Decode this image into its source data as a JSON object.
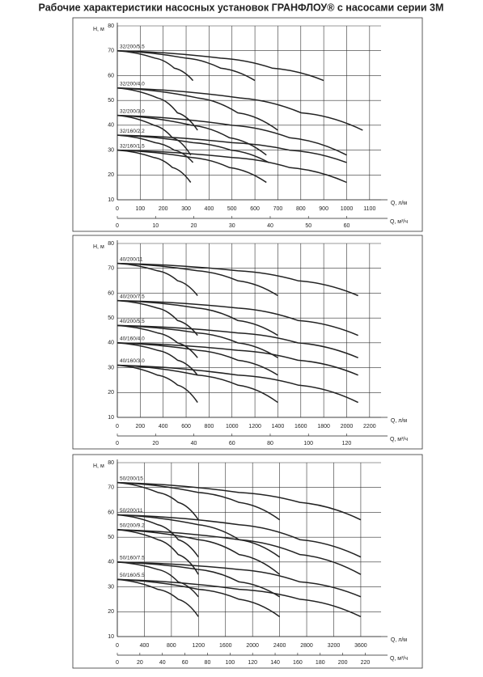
{
  "title": "Рабочие характеристики насосных установок ГРАНФЛОУ® с насосами серии 3М",
  "chart_data": [
    {
      "type": "line",
      "ylabel": "H, м",
      "xlabel": "Q, л/м",
      "x2label": "Q, м³/ч",
      "ylim": [
        10,
        80
      ],
      "yticks": [
        10,
        20,
        30,
        40,
        50,
        60,
        70,
        80
      ],
      "xlim": [
        0,
        1150
      ],
      "xticks": [
        0,
        100,
        200,
        300,
        400,
        500,
        600,
        700,
        800,
        900,
        1000,
        1100
      ],
      "x2lim": [
        0,
        69
      ],
      "x2ticks": [
        0,
        10,
        20,
        30,
        40,
        50,
        60
      ],
      "grid": true,
      "color": "#222222",
      "families": [
        {
          "label": "32/200/5.5",
          "curves": [
            {
              "x": [
                0,
                165,
                248,
                330
              ],
              "values": [
                70,
                67,
                63,
                58
              ]
            },
            {
              "x": [
                0,
                300,
                450,
                600
              ],
              "values": [
                70,
                67,
                63,
                58
              ]
            },
            {
              "x": [
                0,
                450,
                675,
                900
              ],
              "values": [
                70,
                67,
                63,
                58
              ]
            }
          ]
        },
        {
          "label": "32/200/4.0",
          "curves": [
            {
              "x": [
                0,
                175,
                262,
                350
              ],
              "values": [
                55,
                51,
                45,
                38
              ]
            },
            {
              "x": [
                0,
                350,
                525,
                700
              ],
              "values": [
                55,
                51,
                45,
                38
              ]
            },
            {
              "x": [
                0,
                535,
                802,
                1070
              ],
              "values": [
                55,
                51,
                45,
                38
              ]
            }
          ]
        },
        {
          "label": "32/200/3.0",
          "curves": [
            {
              "x": [
                0,
                160,
                240,
                320
              ],
              "values": [
                44,
                40,
                35,
                28
              ]
            },
            {
              "x": [
                0,
                325,
                488,
                650
              ],
              "values": [
                44,
                40,
                35,
                28
              ]
            },
            {
              "x": [
                0,
                500,
                750,
                1000
              ],
              "values": [
                44,
                40,
                35,
                28
              ]
            }
          ]
        },
        {
          "label": "32/160/2.2",
          "curves": [
            {
              "x": [
                0,
                165,
                248,
                330
              ],
              "values": [
                36,
                33,
                30,
                25
              ]
            },
            {
              "x": [
                0,
                330,
                495,
                660
              ],
              "values": [
                36,
                33,
                30,
                25
              ]
            },
            {
              "x": [
                0,
                500,
                750,
                1000
              ],
              "values": [
                36,
                33,
                30,
                25
              ]
            }
          ]
        },
        {
          "label": "32/160/1.5",
          "curves": [
            {
              "x": [
                0,
                160,
                240,
                320
              ],
              "values": [
                30,
                27,
                23,
                17
              ]
            },
            {
              "x": [
                0,
                325,
                488,
                650
              ],
              "values": [
                30,
                27,
                23,
                17
              ]
            },
            {
              "x": [
                0,
                500,
                750,
                1000
              ],
              "values": [
                30,
                27,
                23,
                17
              ]
            }
          ]
        }
      ]
    },
    {
      "type": "line",
      "ylabel": "H, м",
      "xlabel": "Q, л/м",
      "x2label": "Q, м³/ч",
      "ylim": [
        10,
        80
      ],
      "yticks": [
        10,
        20,
        30,
        40,
        50,
        60,
        70,
        80
      ],
      "xlim": [
        0,
        2300
      ],
      "xticks": [
        0,
        200,
        400,
        600,
        800,
        1000,
        1200,
        1400,
        1600,
        1800,
        2000,
        2200
      ],
      "x2lim": [
        0,
        138
      ],
      "x2ticks": [
        0,
        20,
        40,
        60,
        80,
        100,
        120
      ],
      "grid": true,
      "color": "#222222",
      "families": [
        {
          "label": "40/200/11",
          "curves": [
            {
              "x": [
                0,
                350,
                525,
                700
              ],
              "values": [
                72,
                69,
                65,
                59
              ]
            },
            {
              "x": [
                0,
                700,
                1050,
                1400
              ],
              "values": [
                72,
                69,
                65,
                59
              ]
            },
            {
              "x": [
                0,
                1050,
                1575,
                2100
              ],
              "values": [
                72,
                69,
                65,
                59
              ]
            }
          ]
        },
        {
          "label": "40/200/7.5",
          "curves": [
            {
              "x": [
                0,
                350,
                525,
                700
              ],
              "values": [
                57,
                54,
                49,
                43
              ]
            },
            {
              "x": [
                0,
                700,
                1050,
                1400
              ],
              "values": [
                57,
                54,
                49,
                43
              ]
            },
            {
              "x": [
                0,
                1050,
                1575,
                2100
              ],
              "values": [
                57,
                54,
                49,
                43
              ]
            }
          ]
        },
        {
          "label": "40/200/5.5",
          "curves": [
            {
              "x": [
                0,
                350,
                525,
                700
              ],
              "values": [
                47,
                44,
                40,
                34
              ]
            },
            {
              "x": [
                0,
                700,
                1050,
                1400
              ],
              "values": [
                47,
                44,
                40,
                34
              ]
            },
            {
              "x": [
                0,
                1050,
                1575,
                2100
              ],
              "values": [
                47,
                44,
                40,
                34
              ]
            }
          ]
        },
        {
          "label": "40/160/4.0",
          "curves": [
            {
              "x": [
                0,
                350,
                525,
                700
              ],
              "values": [
                40,
                37,
                33,
                27
              ]
            },
            {
              "x": [
                0,
                700,
                1050,
                1400
              ],
              "values": [
                40,
                37,
                33,
                27
              ]
            },
            {
              "x": [
                0,
                1050,
                1575,
                2100
              ],
              "values": [
                40,
                37,
                33,
                27
              ]
            }
          ]
        },
        {
          "label": "40/160/3.0",
          "curves": [
            {
              "x": [
                0,
                350,
                525,
                700
              ],
              "values": [
                31,
                27,
                23,
                16
              ]
            },
            {
              "x": [
                0,
                700,
                1050,
                1400
              ],
              "values": [
                31,
                27,
                23,
                16
              ]
            },
            {
              "x": [
                0,
                1050,
                1575,
                2100
              ],
              "values": [
                31,
                27,
                23,
                16
              ]
            }
          ]
        }
      ]
    },
    {
      "type": "line",
      "ylabel": "H, м",
      "xlabel": "Q, л/м",
      "x2label": "Q, м³/ч",
      "ylim": [
        10,
        80
      ],
      "yticks": [
        10,
        20,
        30,
        40,
        50,
        60,
        70,
        80
      ],
      "xlim": [
        0,
        3900
      ],
      "xticks": [
        0,
        400,
        800,
        1200,
        1600,
        2000,
        2400,
        2800,
        3200,
        3600
      ],
      "x2lim": [
        0,
        234
      ],
      "x2ticks": [
        0,
        20,
        40,
        60,
        80,
        100,
        120,
        140,
        160,
        180,
        200,
        220
      ],
      "grid": true,
      "color": "#222222",
      "families": [
        {
          "label": "50/200/15",
          "curves": [
            {
              "x": [
                0,
                600,
                900,
                1200
              ],
              "values": [
                72,
                68,
                64,
                57
              ]
            },
            {
              "x": [
                0,
                1200,
                1800,
                2400
              ],
              "values": [
                72,
                68,
                64,
                57
              ]
            },
            {
              "x": [
                0,
                1800,
                2700,
                3600
              ],
              "values": [
                72,
                68,
                64,
                57
              ]
            }
          ]
        },
        {
          "label": "50/200/11",
          "curves": [
            {
              "x": [
                0,
                600,
                900,
                1200
              ],
              "values": [
                59,
                55,
                49,
                42
              ]
            },
            {
              "x": [
                0,
                1200,
                1800,
                2400
              ],
              "values": [
                59,
                55,
                49,
                42
              ]
            },
            {
              "x": [
                0,
                1800,
                2700,
                3600
              ],
              "values": [
                59,
                55,
                49,
                42
              ]
            }
          ]
        },
        {
          "label": "50/200/9.2",
          "curves": [
            {
              "x": [
                0,
                600,
                900,
                1200
              ],
              "values": [
                53,
                49,
                43,
                35
              ]
            },
            {
              "x": [
                0,
                1200,
                1800,
                2400
              ],
              "values": [
                53,
                49,
                43,
                35
              ]
            },
            {
              "x": [
                0,
                1800,
                2700,
                3600
              ],
              "values": [
                53,
                49,
                43,
                35
              ]
            }
          ]
        },
        {
          "label": "50/160/7.5",
          "curves": [
            {
              "x": [
                0,
                600,
                900,
                1200
              ],
              "values": [
                40,
                37,
                32,
                26
              ]
            },
            {
              "x": [
                0,
                1200,
                1800,
                2400
              ],
              "values": [
                40,
                37,
                32,
                26
              ]
            },
            {
              "x": [
                0,
                1800,
                2700,
                3600
              ],
              "values": [
                40,
                37,
                32,
                26
              ]
            }
          ]
        },
        {
          "label": "50/160/5.5",
          "curves": [
            {
              "x": [
                0,
                600,
                900,
                1200
              ],
              "values": [
                33,
                29,
                25,
                18
              ]
            },
            {
              "x": [
                0,
                1200,
                1800,
                2400
              ],
              "values": [
                33,
                29,
                25,
                18
              ]
            },
            {
              "x": [
                0,
                1800,
                2700,
                3600
              ],
              "values": [
                33,
                29,
                25,
                18
              ]
            }
          ]
        }
      ]
    }
  ]
}
